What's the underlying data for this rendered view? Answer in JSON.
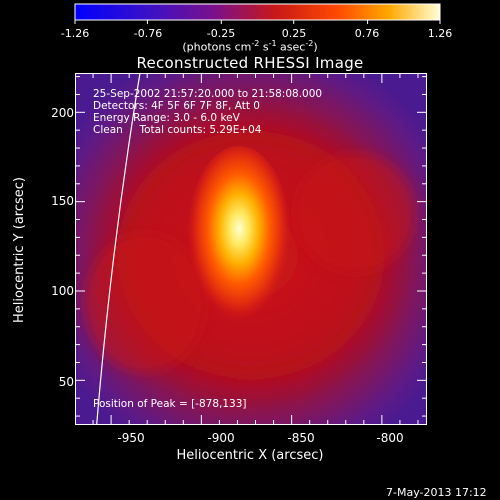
{
  "chart_data": {
    "type": "heatmap",
    "title": "Reconstructed RHESSI Image",
    "xlabel": "Heliocentric X (arcsec)",
    "ylabel": "Heliocentric Y (arcsec)",
    "xlim": [
      -970,
      -775
    ],
    "ylim": [
      25,
      222
    ],
    "x_ticks": [
      "-950",
      "-900",
      "-850",
      "-800"
    ],
    "x_tick_values": [
      -950,
      -900,
      -850,
      -800
    ],
    "y_ticks": [
      "200",
      "150",
      "100",
      "50"
    ],
    "y_tick_values": [
      200,
      150,
      100,
      50
    ],
    "colorbar": {
      "ticks": [
        "-1.26",
        "-0.76",
        "-0.25",
        "0.25",
        "0.76",
        "1.26"
      ],
      "tick_values": [
        -1.26,
        -0.76,
        -0.25,
        0.25,
        0.76,
        1.26
      ],
      "range": [
        -1.26,
        1.26
      ],
      "unit_base": "(photons cm",
      "unit_exp1": "-2",
      "unit_mid1": " s",
      "unit_exp2": "-1",
      "unit_mid2": " asec",
      "unit_exp3": "-2",
      "unit_end": ")"
    },
    "annotations": [
      "25-Sep-2002 21:57:20.000 to 21:58:08.000",
      "Detectors: 4F 5F 6F 7F 8F, Att 0",
      "Energy Range: 3.0 - 6.0 keV",
      "Clean     Total counts: 5.29E+04"
    ],
    "peak_label": "Position of Peak = [-878,133]",
    "peak": [
      -878,
      133
    ],
    "timestamp": "7-May-2013 17:12",
    "colors": {
      "bg": "#000000",
      "low": "#5a1a8a",
      "mid": "#c0101a",
      "high": "#ff8a00",
      "peak": "#ffffc0"
    }
  }
}
